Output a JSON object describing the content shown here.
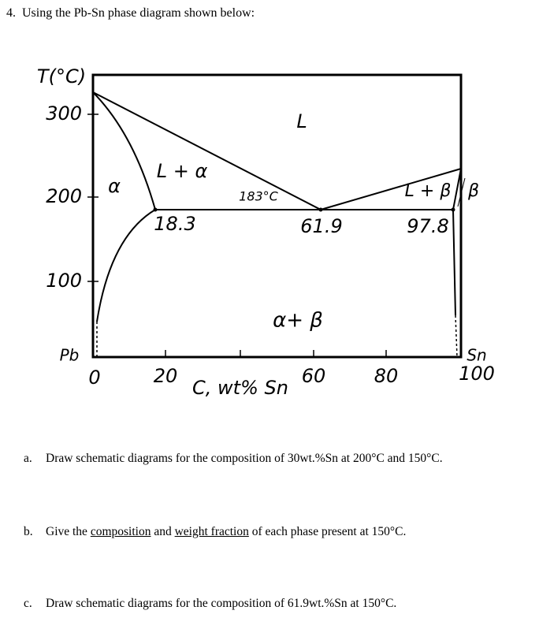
{
  "question": {
    "number": "4.",
    "text": "Using the Pb-Sn phase diagram shown below:"
  },
  "diagram": {
    "y_axis_title": "T(°C)",
    "y_tick_labels": [
      "300",
      "200",
      "100"
    ],
    "x_tick_labels": [
      "0",
      "20",
      "60",
      "80",
      "100"
    ],
    "x_axis_title": "C, wt% Sn",
    "left_element": "Pb",
    "right_element": "Sn",
    "regions": [
      "L",
      "α",
      "L + α",
      "L + β",
      "β",
      "α+ β"
    ],
    "eutectic_temperature": "183°C",
    "compositions": [
      "18.3",
      "61.9",
      "97.8"
    ]
  },
  "parts": [
    {
      "label": "a.",
      "segments": [
        {
          "text": "Draw schematic diagrams for the composition of 30wt.%Sn at 200°C and 150°C."
        }
      ]
    },
    {
      "label": "b.",
      "segments": [
        {
          "text": "Give the "
        },
        {
          "text": "composition",
          "underline": true
        },
        {
          "text": " and "
        },
        {
          "text": "weight fraction",
          "underline": true
        },
        {
          "text": " of each phase present at 150°C."
        }
      ]
    },
    {
      "label": "c.",
      "segments": [
        {
          "text": "Draw schematic diagrams for the composition of 61.9wt.%Sn at 150°C."
        }
      ]
    }
  ]
}
